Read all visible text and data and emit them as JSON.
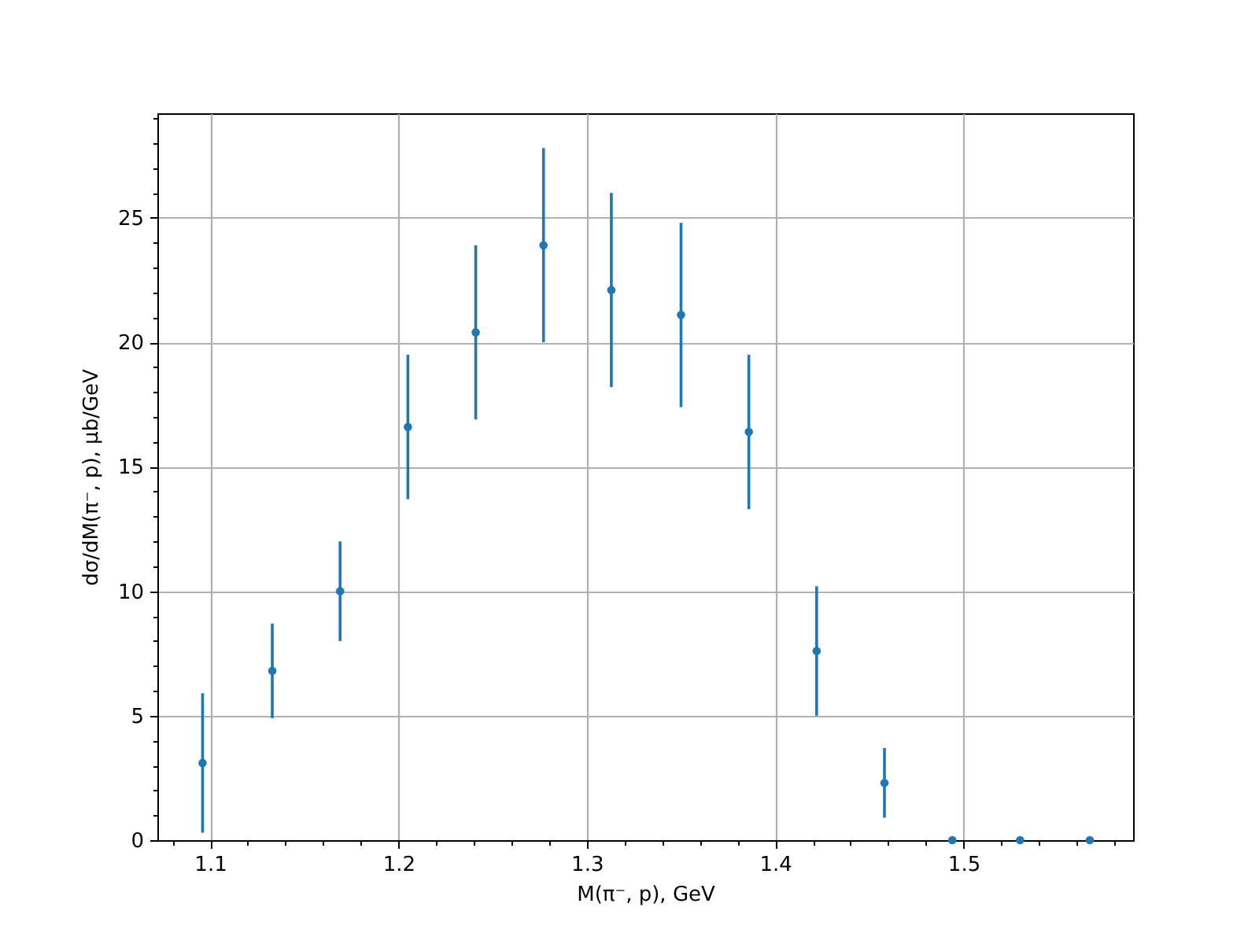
{
  "chart_data": {
    "type": "scatter",
    "xlabel": "M(π⁻, p), GeV",
    "ylabel": "dσ/dM(π⁻, p), μb/GeV",
    "x": [
      1.096,
      1.133,
      1.169,
      1.205,
      1.241,
      1.277,
      1.313,
      1.35,
      1.386,
      1.422,
      1.458,
      1.494,
      1.53,
      1.567
    ],
    "values": [
      3.1,
      6.8,
      10.0,
      16.6,
      20.4,
      23.9,
      22.1,
      21.1,
      16.4,
      7.6,
      2.3,
      0,
      0,
      0
    ],
    "errors": [
      2.8,
      1.9,
      2.0,
      2.9,
      3.5,
      3.9,
      3.9,
      3.7,
      3.1,
      2.6,
      1.4,
      null,
      null,
      null
    ],
    "color": "#1f77b4",
    "marker": "circle",
    "grid": true,
    "xlim": [
      1.072,
      1.59
    ],
    "ylim": [
      0,
      29.2
    ],
    "xticks": [
      {
        "value": 1.08,
        "label": null
      },
      1.1,
      {
        "value": 1.12,
        "label": null
      },
      {
        "value": 1.14,
        "label": null
      },
      {
        "value": 1.16,
        "label": null
      },
      {
        "value": 1.18,
        "label": null
      },
      1.2,
      {
        "value": 1.22,
        "label": null
      },
      {
        "value": 1.24,
        "label": null
      },
      {
        "value": 1.26,
        "label": null
      },
      {
        "value": 1.28,
        "label": null
      },
      1.3,
      {
        "value": 1.32,
        "label": null
      },
      {
        "value": 1.34,
        "label": null
      },
      {
        "value": 1.36,
        "label": null
      },
      {
        "value": 1.38,
        "label": null
      },
      1.4,
      {
        "value": 1.42,
        "label": null
      },
      {
        "value": 1.44,
        "label": null
      },
      {
        "value": 1.46,
        "label": null
      },
      {
        "value": 1.48,
        "label": null
      },
      1.5,
      {
        "value": 1.52,
        "label": null
      },
      {
        "value": 1.54,
        "label": null
      },
      {
        "value": 1.56,
        "label": null
      },
      {
        "value": 1.58,
        "label": null
      }
    ],
    "yticks": [
      0,
      {
        "value": 1,
        "label": null
      },
      {
        "value": 2,
        "label": null
      },
      {
        "value": 3,
        "label": null
      },
      {
        "value": 4,
        "label": null
      },
      5,
      {
        "value": 6,
        "label": null
      },
      {
        "value": 7,
        "label": null
      },
      {
        "value": 8,
        "label": null
      },
      {
        "value": 9,
        "label": null
      },
      10,
      {
        "value": 11,
        "label": null
      },
      {
        "value": 12,
        "label": null
      },
      {
        "value": 13,
        "label": null
      },
      {
        "value": 14,
        "label": null
      },
      15,
      {
        "value": 16,
        "label": null
      },
      {
        "value": 17,
        "label": null
      },
      {
        "value": 18,
        "label": null
      },
      {
        "value": 19,
        "label": null
      },
      20,
      {
        "value": 21,
        "label": null
      },
      {
        "value": 22,
        "label": null
      },
      {
        "value": 23,
        "label": null
      },
      {
        "value": 24,
        "label": null
      },
      25,
      {
        "value": 26,
        "label": null
      },
      {
        "value": 27,
        "label": null
      },
      {
        "value": 28,
        "label": null
      },
      {
        "value": 29,
        "label": null
      }
    ]
  }
}
